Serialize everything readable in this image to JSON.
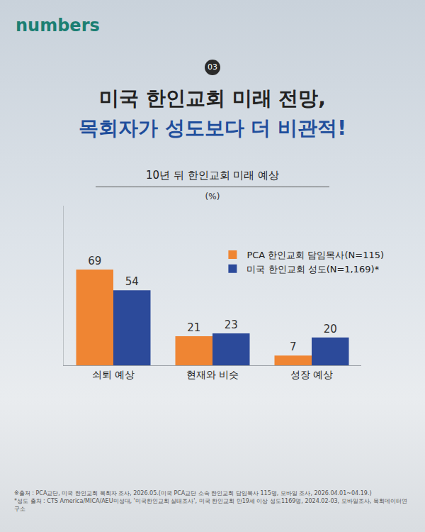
{
  "header": {
    "logo": "numbers",
    "badge": "03",
    "title_lines": [
      "미국 한인교회 미래 전망,",
      "목회자가 성도보다 더 비관적!"
    ]
  },
  "chart_data": {
    "type": "bar",
    "title": "10년 뒤 한인교회 미래 예상",
    "subtitle": "(%)",
    "categories": [
      "쇠퇴 예상",
      "현재와 비슷",
      "성장 예상"
    ],
    "series": [
      {
        "name": "PCA 한인교회 담임목사(N=115)",
        "color": "#ef8533",
        "values": [
          69,
          21,
          7
        ]
      },
      {
        "name": "미국 한인교회 성도(N=1,169)*",
        "color": "#2c4a9a",
        "values": [
          54,
          23,
          20
        ]
      }
    ],
    "ylim": [
      0,
      115
    ],
    "data_labels": true,
    "tick_labels": "x",
    "legend": "top-right",
    "grid": false
  },
  "footnotes": [
    "※출처 : PCA교단, 미국 한인교회 목회자 조사, 2026.05.(미국 PCA교단 소속 한인교회 담임목사 115명, 모바일 조사, 2026.04.01~04.19.)",
    "*성도 출처 : CTS America/MICA/AEU미성대, '미국한인교회 실태조사', 미국 한인교회 만19세 이상 성도1169명, 2024.02-03, 모바일조사, 목회데이터연구소"
  ]
}
